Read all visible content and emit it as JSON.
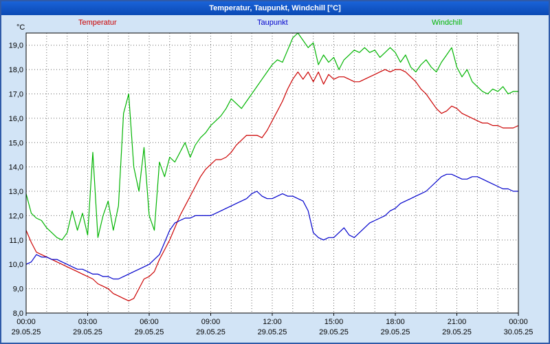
{
  "window": {
    "title": "Temperatur, Taupunkt, Windchill [°C]"
  },
  "colors": {
    "background": "#d2e4f6",
    "frame_border": "#2f5aa8",
    "titlebar_top": "#1a63d8",
    "titlebar_bottom": "#0a49b4",
    "temperatur": "#cc0000",
    "taupunkt": "#0000cc",
    "windchill": "#00b400",
    "plot_background": "#ffffff",
    "grid": "#666666",
    "axis": "#000000"
  },
  "legend": [
    {
      "label": "Temperatur",
      "color": "#cc0000"
    },
    {
      "label": "Taupunkt",
      "color": "#0000cc"
    },
    {
      "label": "Windchill",
      "color": "#00b400"
    }
  ],
  "chart_data": {
    "type": "line",
    "title": "Temperatur, Taupunkt, Windchill [°C]",
    "ylabel": "°C",
    "xlabel": "",
    "grid": true,
    "legend_position": "top",
    "ylim": [
      8.0,
      19.5
    ],
    "ytick_step": 1.0,
    "yticks": [
      8,
      9,
      10,
      11,
      12,
      13,
      14,
      15,
      16,
      17,
      18,
      19
    ],
    "ytick_labels": [
      "8,0",
      "9,0",
      "10,0",
      "11,0",
      "12,0",
      "13,0",
      "14,0",
      "15,0",
      "16,0",
      "17,0",
      "18,0",
      "19,0"
    ],
    "xlim_hours": [
      0,
      24
    ],
    "x_minor_grid_hours": 1,
    "xticks": [
      {
        "h": 0,
        "time": "00:00",
        "date": "29.05.25"
      },
      {
        "h": 3,
        "time": "03:00",
        "date": "29.05.25"
      },
      {
        "h": 6,
        "time": "06:00",
        "date": "29.05.25"
      },
      {
        "h": 9,
        "time": "09:00",
        "date": "29.05.25"
      },
      {
        "h": 12,
        "time": "12:00",
        "date": "29.05.25"
      },
      {
        "h": 15,
        "time": "15:00",
        "date": "29.05.25"
      },
      {
        "h": 18,
        "time": "18:00",
        "date": "29.05.25"
      },
      {
        "h": 21,
        "time": "21:00",
        "date": "29.05.25"
      },
      {
        "h": 24,
        "time": "00:00",
        "date": "30.05.25"
      }
    ],
    "x_start_hour": 0,
    "x_step_hours": 0.25,
    "series": [
      {
        "name": "Temperatur",
        "color": "#cc0000",
        "values": [
          11.4,
          10.9,
          10.5,
          10.4,
          10.3,
          10.2,
          10.1,
          10.0,
          9.9,
          9.8,
          9.7,
          9.6,
          9.5,
          9.4,
          9.2,
          9.1,
          9.0,
          8.8,
          8.7,
          8.6,
          8.5,
          8.6,
          9.0,
          9.4,
          9.5,
          9.7,
          10.2,
          10.6,
          11.0,
          11.5,
          12.0,
          12.4,
          12.8,
          13.2,
          13.6,
          13.9,
          14.1,
          14.3,
          14.3,
          14.4,
          14.6,
          14.9,
          15.1,
          15.3,
          15.3,
          15.3,
          15.2,
          15.5,
          15.9,
          16.3,
          16.7,
          17.2,
          17.6,
          17.9,
          17.6,
          17.9,
          17.5,
          17.9,
          17.4,
          17.8,
          17.6,
          17.7,
          17.7,
          17.6,
          17.5,
          17.5,
          17.6,
          17.7,
          17.8,
          17.9,
          18.0,
          17.9,
          18.0,
          18.0,
          17.9,
          17.7,
          17.5,
          17.2,
          17.0,
          16.7,
          16.4,
          16.2,
          16.3,
          16.5,
          16.4,
          16.2,
          16.1,
          16.0,
          15.9,
          15.8,
          15.8,
          15.7,
          15.7,
          15.6,
          15.6,
          15.6,
          15.7
        ]
      },
      {
        "name": "Taupunkt",
        "color": "#0000cc",
        "values": [
          10.0,
          10.1,
          10.4,
          10.3,
          10.3,
          10.2,
          10.2,
          10.1,
          10.0,
          9.9,
          9.8,
          9.8,
          9.7,
          9.6,
          9.6,
          9.5,
          9.5,
          9.4,
          9.4,
          9.5,
          9.6,
          9.7,
          9.8,
          9.9,
          10.0,
          10.2,
          10.4,
          10.9,
          11.4,
          11.7,
          11.8,
          11.9,
          11.9,
          12.0,
          12.0,
          12.0,
          12.0,
          12.1,
          12.2,
          12.3,
          12.4,
          12.5,
          12.6,
          12.7,
          12.9,
          13.0,
          12.8,
          12.7,
          12.7,
          12.8,
          12.9,
          12.8,
          12.8,
          12.7,
          12.6,
          12.2,
          11.3,
          11.1,
          11.0,
          11.1,
          11.1,
          11.3,
          11.5,
          11.2,
          11.1,
          11.3,
          11.5,
          11.7,
          11.8,
          11.9,
          12.0,
          12.2,
          12.3,
          12.5,
          12.6,
          12.7,
          12.8,
          12.9,
          13.0,
          13.2,
          13.4,
          13.6,
          13.7,
          13.7,
          13.6,
          13.5,
          13.5,
          13.6,
          13.6,
          13.5,
          13.4,
          13.3,
          13.2,
          13.1,
          13.1,
          13.0,
          13.0
        ]
      },
      {
        "name": "Windchill",
        "color": "#00b400",
        "values": [
          12.9,
          12.1,
          11.9,
          11.8,
          11.5,
          11.3,
          11.1,
          11.0,
          11.3,
          12.2,
          11.4,
          12.1,
          11.2,
          14.6,
          11.1,
          12.0,
          12.6,
          11.4,
          12.4,
          16.2,
          17.0,
          14.0,
          13.0,
          14.8,
          12.0,
          11.4,
          14.2,
          13.6,
          14.4,
          14.2,
          14.6,
          15.0,
          14.4,
          14.9,
          15.2,
          15.4,
          15.7,
          15.9,
          16.1,
          16.4,
          16.8,
          16.6,
          16.4,
          16.7,
          17.0,
          17.3,
          17.6,
          17.9,
          18.2,
          18.4,
          18.3,
          18.8,
          19.3,
          19.5,
          19.2,
          18.9,
          19.1,
          18.2,
          18.6,
          18.3,
          18.5,
          18.0,
          18.4,
          18.6,
          18.8,
          18.7,
          18.9,
          18.7,
          18.8,
          18.5,
          18.7,
          18.9,
          18.7,
          18.3,
          18.6,
          18.1,
          17.9,
          18.2,
          18.4,
          18.1,
          17.9,
          18.3,
          18.6,
          18.9,
          18.1,
          17.7,
          18.0,
          17.5,
          17.3,
          17.1,
          17.0,
          17.2,
          17.1,
          17.3,
          17.0,
          17.1,
          17.1
        ]
      }
    ]
  }
}
